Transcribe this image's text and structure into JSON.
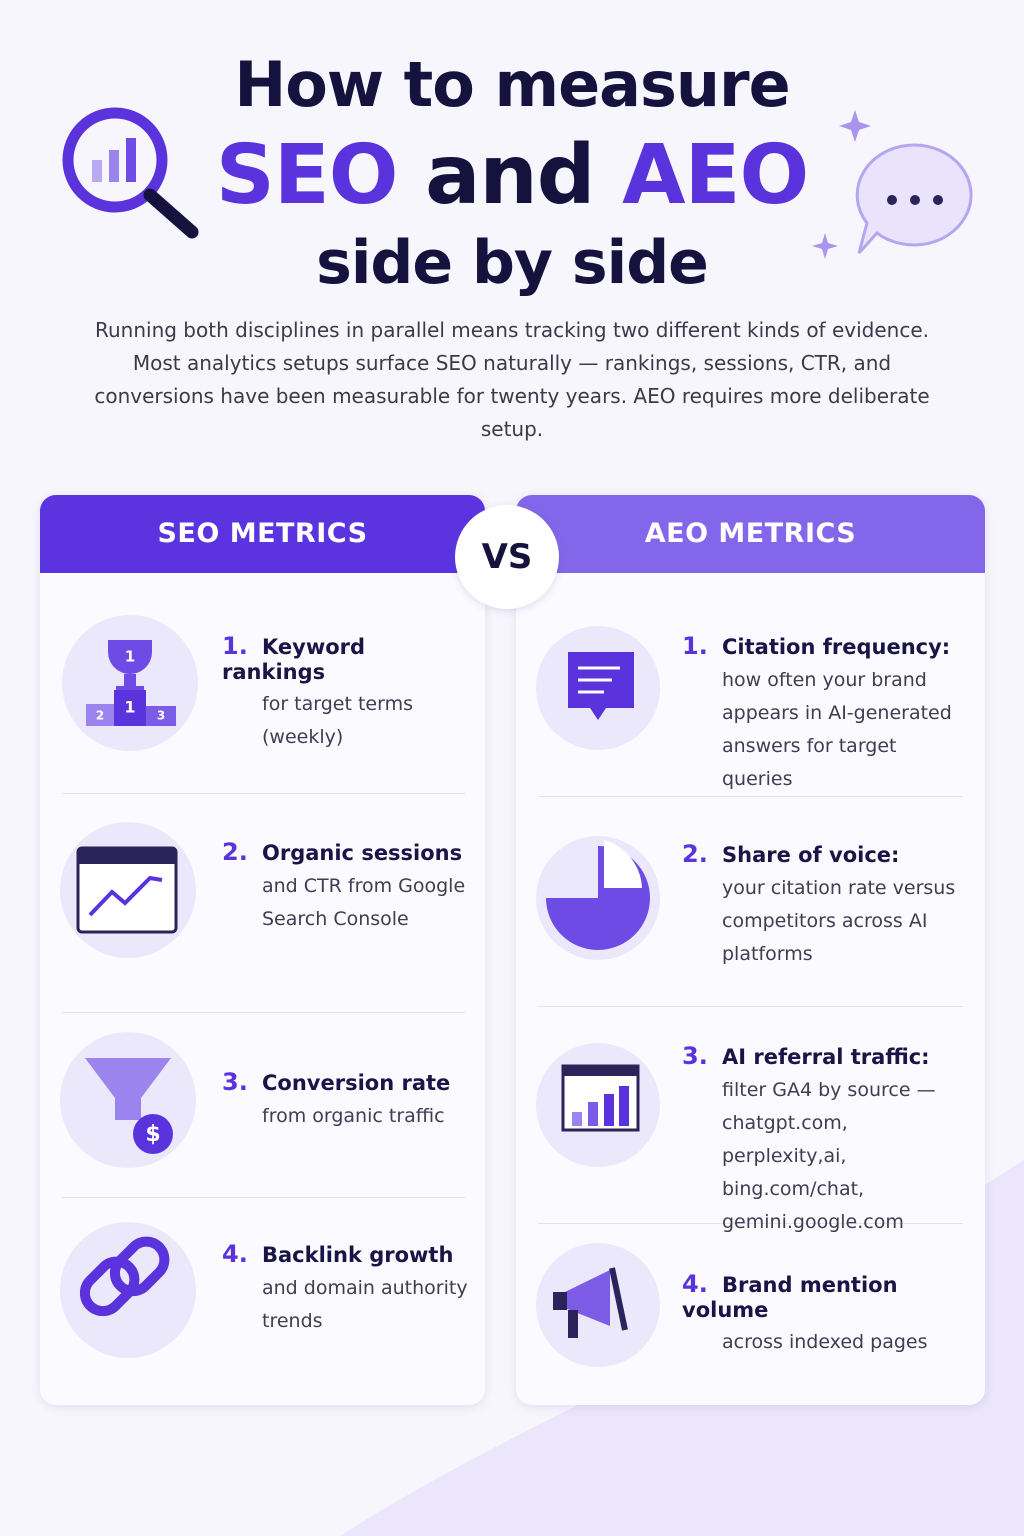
{
  "header": {
    "line1": "How to measure",
    "seo": "SEO",
    "and": "and",
    "aeo": "AEO",
    "line3": "side by side"
  },
  "intro": "Running both disciplines in parallel means tracking two different kinds of evidence. Most analytics setups surface SEO naturally — rankings, sessions, CTR, and conversions have been measurable for twenty years. AEO requires more deliberate setup.",
  "vs": "VS",
  "icon_texts": {
    "podium": [
      "1",
      "2",
      "3"
    ],
    "trophy": "1",
    "dollar": "$"
  },
  "columns": [
    {
      "heading": "SEO METRICS",
      "items": [
        {
          "number": "1.",
          "title": "Keyword rankings",
          "text": "for target terms (weekly)"
        },
        {
          "number": "2.",
          "title": "Organic sessions",
          "text": "and CTR from Google Search Console"
        },
        {
          "number": "3.",
          "title": "Conversion rate",
          "text": "from organic traffic"
        },
        {
          "number": "4.",
          "title": "Backlink growth",
          "text": "and domain authority trends"
        }
      ]
    },
    {
      "heading": "AEO METRICS",
      "items": [
        {
          "number": "1.",
          "title": "Citation frequency:",
          "text": "how often your brand appears in AI-generated answers for target queries"
        },
        {
          "number": "2.",
          "title": "Share of voice:",
          "text": "your citation rate versus competitors across AI platforms"
        },
        {
          "number": "3.",
          "title": "AI referral traffic:",
          "text": "filter GA4 by source — chatgpt.com, perplexity,ai, bing.com/chat, gemini.google.com"
        },
        {
          "number": "4.",
          "title": "Brand mention volume",
          "text": "across indexed pages"
        }
      ]
    }
  ]
}
